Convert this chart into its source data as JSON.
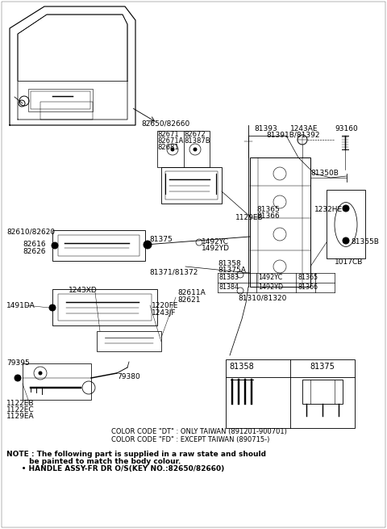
{
  "bg_color": "#ffffff",
  "fig_width": 4.8,
  "fig_height": 6.55,
  "dpi": 100,
  "note_line1": "NOTE : The following part is supplied in a raw state and should",
  "note_line2": "         be painted to match the body colour.",
  "note_line3": "      • HANDLE ASSY-FR DR O/S(KEY NO.:82650/82660)",
  "cc_line1": "COLOR CODE \"DT\" : ONLY TAIWAN (891201-900701)",
  "cc_line2": "COLOR CODE \"FD\" : EXCEPT TAIWAN (890715-)"
}
